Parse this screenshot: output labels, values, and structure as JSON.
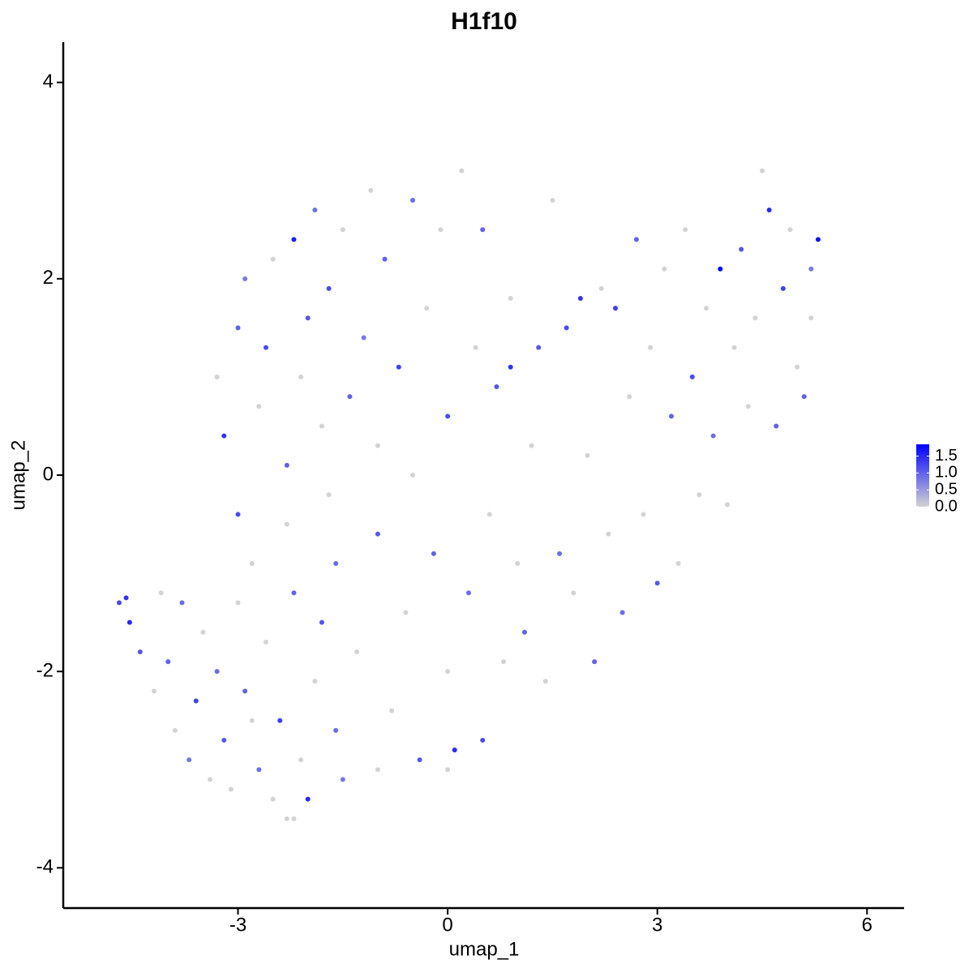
{
  "chart_data": {
    "type": "scatter",
    "title": "H1f10",
    "x_label": "umap_1",
    "y_label": "umap_2",
    "x": [
      -4.7,
      -4.6,
      -4.55,
      -4.4,
      -4.2,
      -4.0,
      -3.9,
      -3.7,
      -3.6,
      -3.5,
      -3.4,
      -3.3,
      -3.2,
      -3.1,
      -3.0,
      -3.0,
      -2.9,
      -2.8,
      -2.7,
      -2.6,
      -2.5,
      -2.4,
      -2.3,
      -2.2,
      -2.1,
      -2.0,
      -1.9,
      -1.8,
      -1.7,
      -1.6,
      -3.2,
      -3.3,
      -3.0,
      -2.9,
      -2.7,
      -2.6,
      -2.5,
      -2.3,
      -2.2,
      -2.1,
      -2.0,
      -1.9,
      -1.8,
      -1.7,
      -1.6,
      -1.5,
      -1.4,
      -1.3,
      -1.2,
      -1.1,
      -1.0,
      -1.0,
      -0.9,
      -0.8,
      -0.7,
      -0.6,
      -0.5,
      -0.5,
      -0.4,
      -0.3,
      -0.2,
      -0.1,
      0.0,
      0.0,
      0.1,
      0.2,
      0.3,
      0.4,
      0.5,
      0.5,
      0.6,
      0.7,
      0.8,
      0.9,
      0.9,
      1.0,
      1.1,
      1.2,
      1.3,
      1.4,
      1.5,
      1.6,
      1.7,
      1.8,
      1.9,
      2.0,
      2.1,
      2.2,
      2.3,
      2.4,
      2.5,
      2.6,
      2.7,
      2.8,
      2.9,
      3.0,
      3.1,
      3.2,
      3.3,
      3.4,
      3.5,
      3.6,
      3.7,
      3.8,
      3.9,
      4.0,
      4.1,
      4.2,
      4.3,
      4.4,
      4.5,
      4.6,
      4.7,
      4.8,
      4.9,
      5.0,
      5.1,
      5.2,
      5.3,
      5.2,
      -4.1,
      -3.8,
      -1.0,
      0.0,
      -2.2,
      -2.3,
      -2.8,
      -1.5
    ],
    "series": [
      {
        "name": "H1f10",
        "values": [
          -1.3,
          -1.25,
          -1.5,
          -1.8,
          -2.2,
          -1.9,
          -2.6,
          -2.9,
          -2.3,
          -1.6,
          -3.1,
          -2.0,
          -2.7,
          -3.2,
          -0.4,
          -1.3,
          -2.2,
          -0.9,
          -3.0,
          -1.7,
          -3.3,
          -2.5,
          -0.5,
          -1.2,
          -2.9,
          -3.3,
          -2.1,
          -1.5,
          -0.2,
          -2.6,
          0.4,
          1.0,
          1.5,
          2.0,
          0.7,
          1.3,
          2.2,
          0.1,
          2.4,
          1.0,
          1.6,
          2.7,
          0.5,
          1.9,
          -0.9,
          2.5,
          0.8,
          -1.8,
          1.4,
          2.9,
          -0.6,
          0.3,
          2.2,
          -2.4,
          1.1,
          -1.4,
          2.8,
          0.0,
          -2.9,
          1.7,
          -0.8,
          2.5,
          0.6,
          -2.0,
          -2.8,
          3.1,
          -1.2,
          1.3,
          -2.7,
          2.5,
          -0.4,
          0.9,
          -1.9,
          1.8,
          1.1,
          -0.9,
          -1.6,
          0.3,
          1.3,
          -2.1,
          2.8,
          -0.8,
          1.5,
          -1.2,
          1.8,
          0.2,
          -1.9,
          1.9,
          -0.6,
          1.7,
          -1.4,
          0.8,
          2.4,
          -0.4,
          1.3,
          -1.1,
          2.1,
          0.6,
          -0.9,
          2.5,
          1.0,
          -0.2,
          1.7,
          0.4,
          2.1,
          -0.3,
          1.3,
          2.3,
          0.7,
          1.6,
          3.1,
          2.7,
          0.5,
          1.9,
          2.5,
          1.1,
          0.8,
          1.6,
          2.4,
          2.1,
          -1.2,
          -1.3,
          -3.0,
          -3.0,
          -3.5,
          -3.5,
          -2.5,
          -3.1
        ],
        "expression": [
          1.2,
          1.4,
          1.5,
          1.1,
          0,
          1.0,
          0,
          0.8,
          1.3,
          0,
          0,
          0.9,
          1.1,
          0,
          1.2,
          0,
          1.0,
          0,
          0.9,
          0,
          0,
          1.3,
          0,
          1.0,
          0,
          1.5,
          0,
          1.1,
          0,
          0.9,
          1.4,
          0,
          1.0,
          0.8,
          0,
          1.2,
          0,
          1.0,
          1.6,
          0,
          1.1,
          0.9,
          0,
          1.2,
          0.9,
          0,
          1.0,
          0,
          0.8,
          0,
          1.1,
          0,
          1.0,
          0,
          1.3,
          0,
          0.9,
          0,
          1.1,
          0,
          1.0,
          0,
          1.2,
          0,
          1.5,
          0,
          0.9,
          0,
          1.2,
          1.0,
          0,
          1.1,
          0,
          0,
          1.4,
          0,
          1.0,
          0,
          1.1,
          0,
          0,
          0.9,
          1.2,
          0,
          1.4,
          0,
          1.0,
          0,
          0,
          1.3,
          0.9,
          0,
          1.0,
          0,
          0,
          1.1,
          0,
          1.0,
          0,
          0,
          1.2,
          0,
          0,
          0.9,
          1.8,
          0,
          0,
          1.1,
          0,
          0,
          0,
          1.5,
          1.0,
          1.3,
          0,
          0,
          1.0,
          0,
          1.7,
          0.8,
          0,
          0.9,
          0,
          0,
          0,
          0,
          0,
          0.8
        ]
      }
    ],
    "xlim": [
      -5.5,
      6.53
    ],
    "ylim": [
      -4.41,
      4.41
    ],
    "xticks": [
      -3,
      0,
      3,
      6
    ],
    "yticks": [
      -4,
      -2,
      0,
      2,
      4
    ],
    "color_low": "#d3d3d3",
    "color_high": "#0000ff",
    "colorlim": [
      0,
      1.85
    ],
    "color_ticks": [
      {
        "value": 0,
        "label": "0.0"
      },
      {
        "value": 0.5,
        "label": "0.5"
      },
      {
        "value": 1.0,
        "label": "1.0"
      },
      {
        "value": 1.5,
        "label": "1.5"
      }
    ]
  }
}
